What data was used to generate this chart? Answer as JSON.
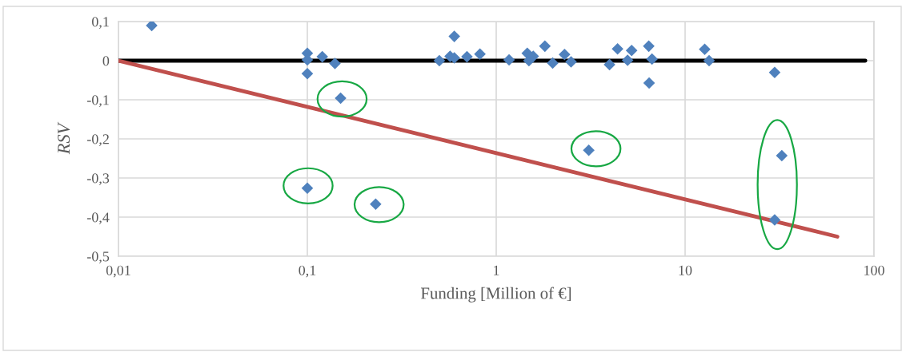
{
  "chart_data": {
    "type": "scatter",
    "xlabel": "Funding [Million of €]",
    "ylabel": "RSV",
    "log": "x",
    "grid": true,
    "legend": false,
    "xlim": [
      0.01,
      100
    ],
    "xticks": [
      {
        "value": 0.01,
        "label": "0,01"
      },
      {
        "value": 0.1,
        "label": "0,1"
      },
      1,
      10,
      100
    ],
    "ylim": [
      -0.5,
      0.1
    ],
    "yticks": [
      {
        "value": -0.5,
        "label": "-0,5"
      },
      {
        "value": -0.4,
        "label": "-0,4"
      },
      {
        "value": -0.3,
        "label": "-0,3"
      },
      {
        "value": -0.2,
        "label": "-0,2"
      },
      {
        "value": -0.1,
        "label": "-0,1"
      },
      0,
      {
        "value": 0.1,
        "label": "0,1"
      }
    ],
    "series": [
      {
        "type": "line",
        "color": "#000000",
        "marker": "none",
        "line_style": "solid",
        "x": [
          0.01,
          90
        ],
        "values": [
          0,
          0
        ]
      },
      {
        "type": "line",
        "color": "#c0504d",
        "marker": "none",
        "line_style": "solid",
        "x": [
          0.01,
          64
        ],
        "values": [
          0,
          -0.45
        ]
      },
      {
        "color": "#4f81bd",
        "marker": "diamond",
        "x": [
          0.015,
          0.1,
          0.1,
          0.12,
          0.14,
          0.1,
          0.15,
          0.1,
          0.23,
          0.5,
          0.6,
          0.57,
          0.6,
          0.7,
          0.82,
          1.17,
          1.46,
          1.49,
          1.57,
          1.81,
          1.99,
          2.3,
          2.49,
          3.09,
          3.98,
          4.39,
          4.96,
          5.21,
          6.42,
          6.45,
          6.68,
          12.7,
          13.4,
          29.8,
          32.5,
          29.8
        ],
        "values": [
          0.09,
          0.019,
          0.002,
          0.01,
          -0.007,
          -0.033,
          -0.096,
          -0.326,
          -0.367,
          0.0,
          0.062,
          0.011,
          0.007,
          0.01,
          0.017,
          0.002,
          0.019,
          0.0,
          0.011,
          0.037,
          -0.006,
          0.016,
          -0.003,
          -0.229,
          -0.01,
          0.03,
          0.001,
          0.026,
          0.037,
          -0.057,
          0.004,
          0.029,
          0.0,
          -0.03,
          -0.243,
          -0.407
        ]
      }
    ]
  }
}
